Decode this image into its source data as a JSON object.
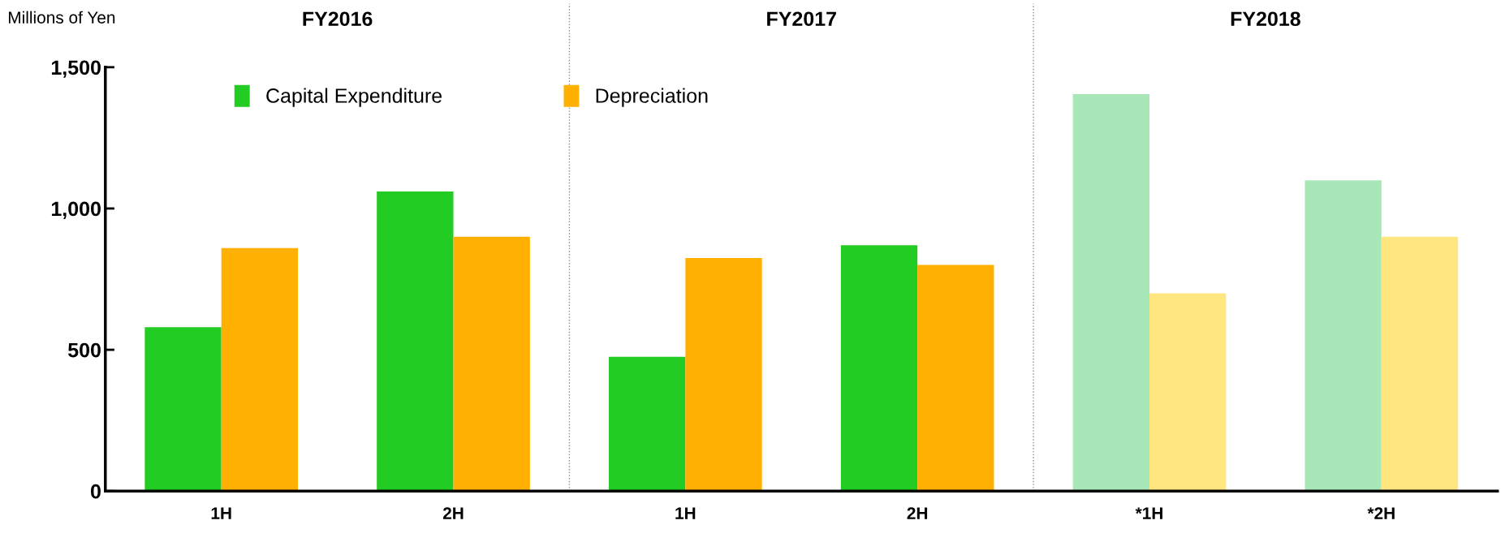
{
  "chart_data": {
    "type": "bar",
    "ylabel": "Millions of Yen",
    "categories": [
      "1H",
      "2H",
      "1H",
      "2H",
      "*1H",
      "*2H"
    ],
    "series": [
      {
        "name": "Capital Expenditure",
        "color": "#22cc22",
        "colors": [
          "#22cc22",
          "#22cc22",
          "#22cc22",
          "#22cc22",
          "#a8e8b8",
          "#a8e8b8"
        ],
        "values": [
          580,
          1060,
          475,
          870,
          1405,
          1100
        ]
      },
      {
        "name": "Depreciation",
        "color": "#ffb000",
        "colors": [
          "#ffb000",
          "#ffb000",
          "#ffb000",
          "#ffb000",
          "#ffe680",
          "#ffe680"
        ],
        "values": [
          860,
          900,
          825,
          800,
          700,
          900
        ]
      }
    ],
    "annotations": [
      "FY2016",
      "FY2017",
      "FY2018"
    ],
    "ylim": [
      0,
      1500
    ],
    "yticks": [
      0,
      {
        "value": 500,
        "label": "500"
      },
      {
        "value": 1000,
        "label": "1,000"
      },
      {
        "value": 1500,
        "label": "1,500"
      }
    ],
    "legend": "top left",
    "grid": false
  }
}
